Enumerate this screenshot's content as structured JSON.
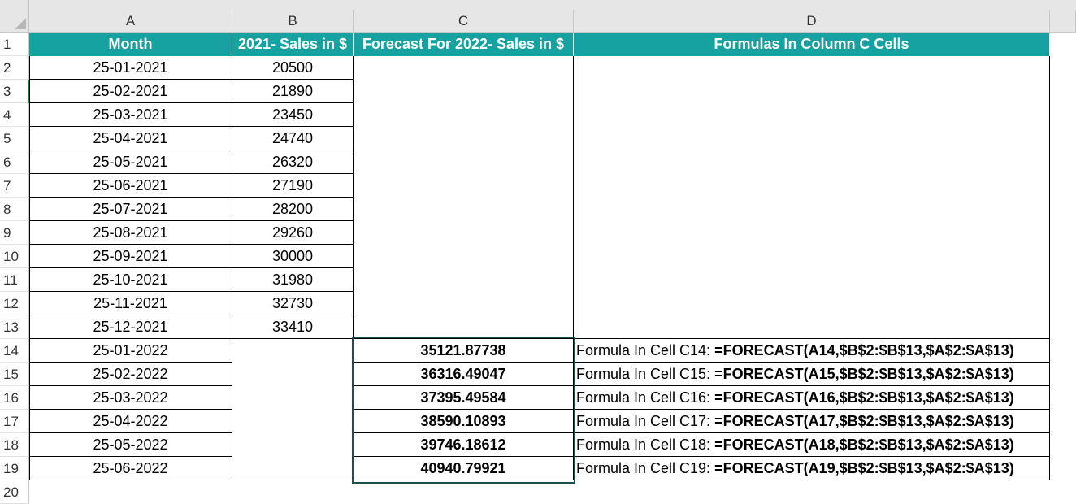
{
  "columns": [
    "A",
    "B",
    "C",
    "D"
  ],
  "rows": [
    "1",
    "2",
    "3",
    "4",
    "5",
    "6",
    "7",
    "8",
    "9",
    "10",
    "11",
    "12",
    "13",
    "14",
    "15",
    "16",
    "17",
    "18",
    "19",
    "20"
  ],
  "header": {
    "month": "Month",
    "sales_2021": "2021- Sales in $",
    "forecast_2022": "Forecast For 2022- Sales in $",
    "formulas": "Formulas In Column C Cells"
  },
  "data_2021": [
    {
      "month": "25-01-2021",
      "sales": "20500"
    },
    {
      "month": "25-02-2021",
      "sales": "21890"
    },
    {
      "month": "25-03-2021",
      "sales": "23450"
    },
    {
      "month": "25-04-2021",
      "sales": "24740"
    },
    {
      "month": "25-05-2021",
      "sales": "26320"
    },
    {
      "month": "25-06-2021",
      "sales": "27190"
    },
    {
      "month": "25-07-2021",
      "sales": "28200"
    },
    {
      "month": "25-08-2021",
      "sales": "29260"
    },
    {
      "month": "25-09-2021",
      "sales": "30000"
    },
    {
      "month": "25-10-2021",
      "sales": "31980"
    },
    {
      "month": "25-11-2021",
      "sales": "32730"
    },
    {
      "month": "25-12-2021",
      "sales": "33410"
    }
  ],
  "forecast_2022": [
    {
      "month": "25-01-2022",
      "forecast": "35121.87738",
      "formula_label": "Formula In Cell C14: ",
      "formula": "=FORECAST(A14,$B$2:$B$13,$A$2:$A$13)"
    },
    {
      "month": "25-02-2022",
      "forecast": "36316.49047",
      "formula_label": "Formula In Cell C15: ",
      "formula": "=FORECAST(A15,$B$2:$B$13,$A$2:$A$13)"
    },
    {
      "month": "25-03-2022",
      "forecast": "37395.49584",
      "formula_label": "Formula In Cell C16: ",
      "formula": "=FORECAST(A16,$B$2:$B$13,$A$2:$A$13)"
    },
    {
      "month": "25-04-2022",
      "forecast": "38590.10893",
      "formula_label": "Formula In Cell C17: ",
      "formula": "=FORECAST(A17,$B$2:$B$13,$A$2:$A$13)"
    },
    {
      "month": "25-05-2022",
      "forecast": "39746.18612",
      "formula_label": "Formula In Cell C18: ",
      "formula": "=FORECAST(A18,$B$2:$B$13,$A$2:$A$13)"
    },
    {
      "month": "25-06-2022",
      "forecast": "40940.79921",
      "formula_label": "Formula In Cell C19: ",
      "formula": "=FORECAST(A19,$B$2:$B$13,$A$2:$A$13)"
    }
  ],
  "colors": {
    "header_bg": "#17a2a2",
    "selection_border": "#1f4e4e"
  }
}
